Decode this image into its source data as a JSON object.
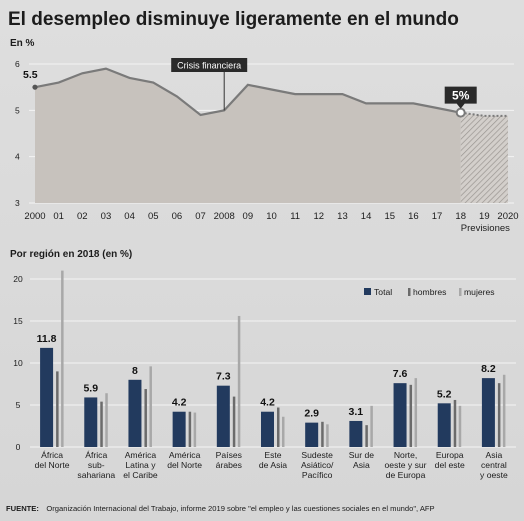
{
  "title": "El desempleo disminuye ligeramente en el mundo",
  "colors": {
    "bar_total": "#223a5e",
    "bar_hombres": "#6b6b6b",
    "bar_mujeres": "#a8a8a8",
    "line": "#7a7a7a",
    "area": "#c7c2bd",
    "callout_bg": "#2a2a2a"
  },
  "chart_data": [
    {
      "type": "area",
      "ylabel": "En %",
      "ylim": [
        3,
        6
      ],
      "yticks": [
        3,
        4,
        5,
        6
      ],
      "x": [
        2000,
        2001,
        2002,
        2003,
        2004,
        2005,
        2006,
        2007,
        2008,
        2009,
        2010,
        2011,
        2012,
        2013,
        2014,
        2015,
        2016,
        2017,
        2018,
        2019,
        2020
      ],
      "xtick_labels": [
        "2000",
        "01",
        "02",
        "03",
        "04",
        "05",
        "06",
        "07",
        "2008",
        "09",
        "10",
        "11",
        "12",
        "13",
        "14",
        "15",
        "16",
        "17",
        "18",
        "19",
        "2020"
      ],
      "xnote": "Previsiones",
      "series": [
        {
          "values": [
            5.5,
            5.6,
            5.8,
            5.9,
            5.7,
            5.6,
            5.3,
            4.9,
            5.0,
            5.55,
            5.45,
            5.35,
            5.35,
            5.35,
            5.15,
            5.15,
            5.15,
            5.05,
            4.95,
            4.88,
            4.88
          ]
        }
      ],
      "forecast_from": 2018,
      "labels": {
        "start_value": "5.5",
        "end_value": "5%",
        "annotation": "Crisis financiera",
        "annotation_x": 2008
      },
      "grid": true
    },
    {
      "type": "bar",
      "title": "Por región en 2018 (en %)",
      "ylim": [
        0,
        20
      ],
      "yticks": [
        0,
        5,
        10,
        15,
        20
      ],
      "legend": [
        "Total",
        "hombres",
        "mujeres"
      ],
      "legend_position": "top-right",
      "categories": [
        [
          "África",
          "del Norte"
        ],
        [
          "África",
          "sub-",
          "sahariana"
        ],
        [
          "América",
          "Latina y",
          "el Caribe"
        ],
        [
          "América",
          "del Norte"
        ],
        [
          "Países",
          "árabes"
        ],
        [
          "Este",
          "de Asia"
        ],
        [
          "Sudeste",
          "Asiático/",
          "Pacífico"
        ],
        [
          "Sur de",
          "Asia"
        ],
        [
          "Norte,",
          "oeste y sur",
          "de Europa"
        ],
        [
          "Europa",
          "del este"
        ],
        [
          "Asia",
          "central",
          "y oeste"
        ]
      ],
      "series": [
        {
          "name": "Total",
          "values": [
            11.8,
            5.9,
            8.0,
            4.2,
            7.3,
            4.2,
            2.9,
            3.1,
            7.6,
            5.2,
            8.2
          ],
          "labels": [
            "11.8",
            "5.9",
            "8",
            "4.2",
            "7.3",
            "4.2",
            "2.9",
            "3.1",
            "7.6",
            "5.2",
            "8.2"
          ]
        },
        {
          "name": "hombres",
          "values": [
            9.0,
            5.4,
            6.9,
            4.2,
            6.0,
            4.7,
            3.0,
            2.6,
            7.4,
            5.6,
            7.6
          ]
        },
        {
          "name": "mujeres",
          "values": [
            21.0,
            6.4,
            9.6,
            4.1,
            15.6,
            3.6,
            2.7,
            4.9,
            8.2,
            4.9,
            8.6
          ]
        }
      ],
      "grid": true
    }
  ],
  "source": {
    "label": "FUENTE:",
    "text": "Organización Internacional del Trabajo, informe 2019 sobre \"el empleo y las cuestiones sociales en el mundo\", AFP"
  }
}
